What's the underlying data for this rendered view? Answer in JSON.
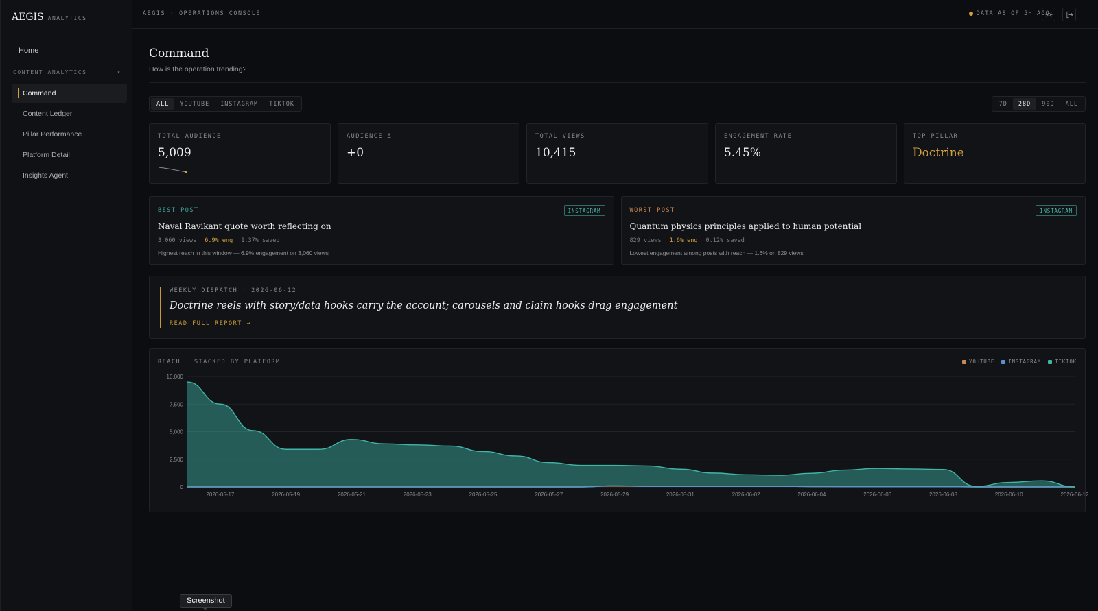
{
  "brand": {
    "name": "AEGIS",
    "sub": "ANALYTICS"
  },
  "sidebar": {
    "home": "Home",
    "section": "CONTENT ANALYTICS",
    "section_chevron": "▾",
    "items": [
      {
        "label": "Command",
        "active": true
      },
      {
        "label": "Content Ledger"
      },
      {
        "label": "Pillar Performance"
      },
      {
        "label": "Platform Detail"
      },
      {
        "label": "Insights Agent"
      }
    ]
  },
  "topbar": {
    "breadcrumb": "AEGIS · OPERATIONS CONSOLE",
    "freshness": "DATA AS OF 5H AGO",
    "icons": [
      "sun-icon",
      "logout-icon"
    ]
  },
  "page": {
    "title": "Command",
    "subtitle": "How is the operation trending?"
  },
  "platform_filter": {
    "options": [
      "ALL",
      "YOUTUBE",
      "INSTAGRAM",
      "TIKTOK"
    ],
    "selected": "ALL"
  },
  "range_filter": {
    "options": [
      "7D",
      "28D",
      "90D",
      "ALL"
    ],
    "selected": "28D"
  },
  "kpis": [
    {
      "label": "TOTAL AUDIENCE",
      "value": "5,009"
    },
    {
      "label": "AUDIENCE Δ",
      "value": "+0"
    },
    {
      "label": "TOTAL VIEWS",
      "value": "10,415"
    },
    {
      "label": "ENGAGEMENT RATE",
      "value": "5.45%"
    },
    {
      "label": "TOP PILLAR",
      "value": "Doctrine"
    }
  ],
  "best_post": {
    "label": "BEST POST",
    "badge": "INSTAGRAM",
    "title": "Naval Ravikant quote worth reflecting on",
    "views": "3,060 views",
    "eng": "6.9% eng",
    "saved": "1.37% saved",
    "note": "Highest reach in this window — 6.9% engagement on 3,060 views"
  },
  "worst_post": {
    "label": "WORST POST",
    "badge": "INSTAGRAM",
    "title": "Quantum physics principles applied to human potential",
    "views": "829 views",
    "eng": "1.6% eng",
    "saved": "0.12% saved",
    "note": "Lowest engagement among posts with reach — 1.6% on 829 views"
  },
  "dispatch": {
    "label": "WEEKLY DISPATCH · 2026-06-12",
    "headline": "Doctrine reels with story/data hooks carry the account; carousels and claim hooks drag engagement",
    "link": "READ FULL REPORT →"
  },
  "chart_title": "REACH · STACKED BY PLATFORM",
  "colors": {
    "accent": "#d4a23c",
    "youtube": "#c98a52",
    "instagram": "#5b8fd6",
    "tiktok": "#3fb6a8"
  },
  "tooltip": "Screenshot",
  "chart_data": {
    "type": "area",
    "stacked": true,
    "x": [
      "2026-05-16",
      "2026-05-17",
      "2026-05-18",
      "2026-05-19",
      "2026-05-20",
      "2026-05-21",
      "2026-05-22",
      "2026-05-23",
      "2026-05-24",
      "2026-05-25",
      "2026-05-26",
      "2026-05-27",
      "2026-05-28",
      "2026-05-29",
      "2026-05-30",
      "2026-05-31",
      "2026-06-01",
      "2026-06-02",
      "2026-06-03",
      "2026-06-04",
      "2026-06-05",
      "2026-06-06",
      "2026-06-07",
      "2026-06-08",
      "2026-06-09",
      "2026-06-10",
      "2026-06-11",
      "2026-06-12"
    ],
    "x_ticks": [
      "2026-05-17",
      "2026-05-19",
      "2026-05-21",
      "2026-05-23",
      "2026-05-25",
      "2026-05-27",
      "2026-05-29",
      "2026-05-31",
      "2026-06-02",
      "2026-06-04",
      "2026-06-06",
      "2026-06-08",
      "2026-06-10",
      "2026-06-12"
    ],
    "series": [
      {
        "name": "YOUTUBE",
        "values": [
          0,
          0,
          0,
          0,
          0,
          0,
          0,
          0,
          0,
          0,
          0,
          0,
          0,
          100,
          50,
          50,
          50,
          50,
          50,
          30,
          20,
          20,
          20,
          20,
          0,
          0,
          0,
          0
        ]
      },
      {
        "name": "INSTAGRAM",
        "values": [
          0,
          0,
          0,
          0,
          0,
          0,
          0,
          0,
          0,
          0,
          0,
          0,
          0,
          0,
          0,
          0,
          0,
          0,
          0,
          0,
          0,
          0,
          0,
          0,
          0,
          0,
          0,
          0
        ]
      },
      {
        "name": "TIKTOK",
        "values": [
          9500,
          7500,
          5100,
          3400,
          3400,
          4300,
          3900,
          3800,
          3700,
          3200,
          2800,
          2200,
          1950,
          1850,
          1850,
          1550,
          1200,
          1050,
          1000,
          1200,
          1500,
          1650,
          1600,
          1550,
          50,
          400,
          550,
          0
        ]
      }
    ],
    "ylim": [
      0,
      10000
    ],
    "y_ticks": [
      0,
      2500,
      5000,
      7500,
      10000
    ],
    "y_tick_labels": [
      "0",
      "2,500",
      "5,000",
      "7,500",
      "10,000"
    ],
    "grid": true,
    "legend": "top-right"
  }
}
